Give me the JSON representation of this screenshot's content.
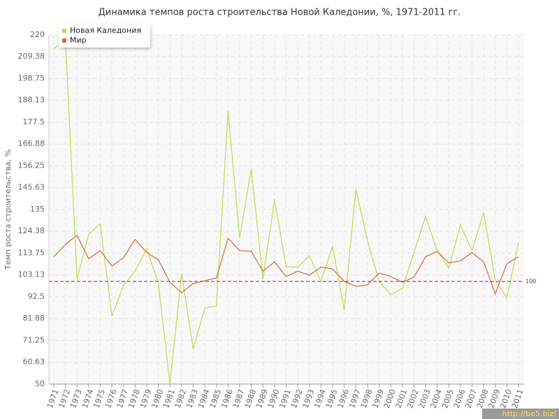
{
  "chart_data": {
    "type": "line",
    "title": "Динамика темпов роста строительства Новой Каледонии, %, 1971-2011 гг.",
    "y_label": "Темп роста строительства, %",
    "categories": [
      "1971",
      "1972",
      "1973",
      "1974",
      "1975",
      "1976",
      "1977",
      "1978",
      "1979",
      "1980",
      "1981",
      "1982",
      "1983",
      "1984",
      "1985",
      "1986",
      "1987",
      "1988",
      "1989",
      "1990",
      "1991",
      "1992",
      "1993",
      "1994",
      "1995",
      "1996",
      "1997",
      "1998",
      "1999",
      "2000",
      "2001",
      "2002",
      "2003",
      "2004",
      "2005",
      "2006",
      "2007",
      "2008",
      "2009",
      "2010",
      "2011"
    ],
    "series": [
      {
        "name": "Новая Каледония",
        "color": "#bcdc4a",
        "values": [
          213.2,
          218,
          101,
          123,
          128,
          83,
          98,
          105,
          116,
          99,
          50,
          104,
          67,
          87,
          88,
          183,
          121,
          155,
          101,
          140,
          107,
          107,
          112.5,
          100,
          117,
          86,
          145,
          120,
          100,
          93.5,
          96.6,
          114,
          131.6,
          115,
          106.5,
          127.5,
          115,
          133.6,
          100.3,
          92,
          119
        ]
      },
      {
        "name": "Мир",
        "color": "#d9663b",
        "values": [
          112,
          118,
          122.4,
          111,
          115,
          107.5,
          111.5,
          120.4,
          114,
          110.5,
          99.6,
          94.5,
          99,
          100.3,
          101.7,
          121,
          115,
          114.6,
          105,
          109.5,
          102.4,
          105,
          103,
          107,
          106,
          100,
          97.6,
          98.3,
          104,
          102.4,
          99.6,
          102,
          112,
          114.6,
          109,
          110,
          114,
          109.5,
          94,
          108.5,
          112
        ]
      }
    ],
    "ylim": [
      50,
      220
    ],
    "yticks": [
      50,
      60.63,
      71.25,
      81.88,
      92.5,
      103.13,
      113.75,
      124.38,
      135,
      145.63,
      156.25,
      166.88,
      177.5,
      188.13,
      198.75,
      209.38,
      220
    ],
    "grid": true,
    "legend": "top-left",
    "reference_line": 100,
    "watermark": "http://be5.biz/"
  }
}
